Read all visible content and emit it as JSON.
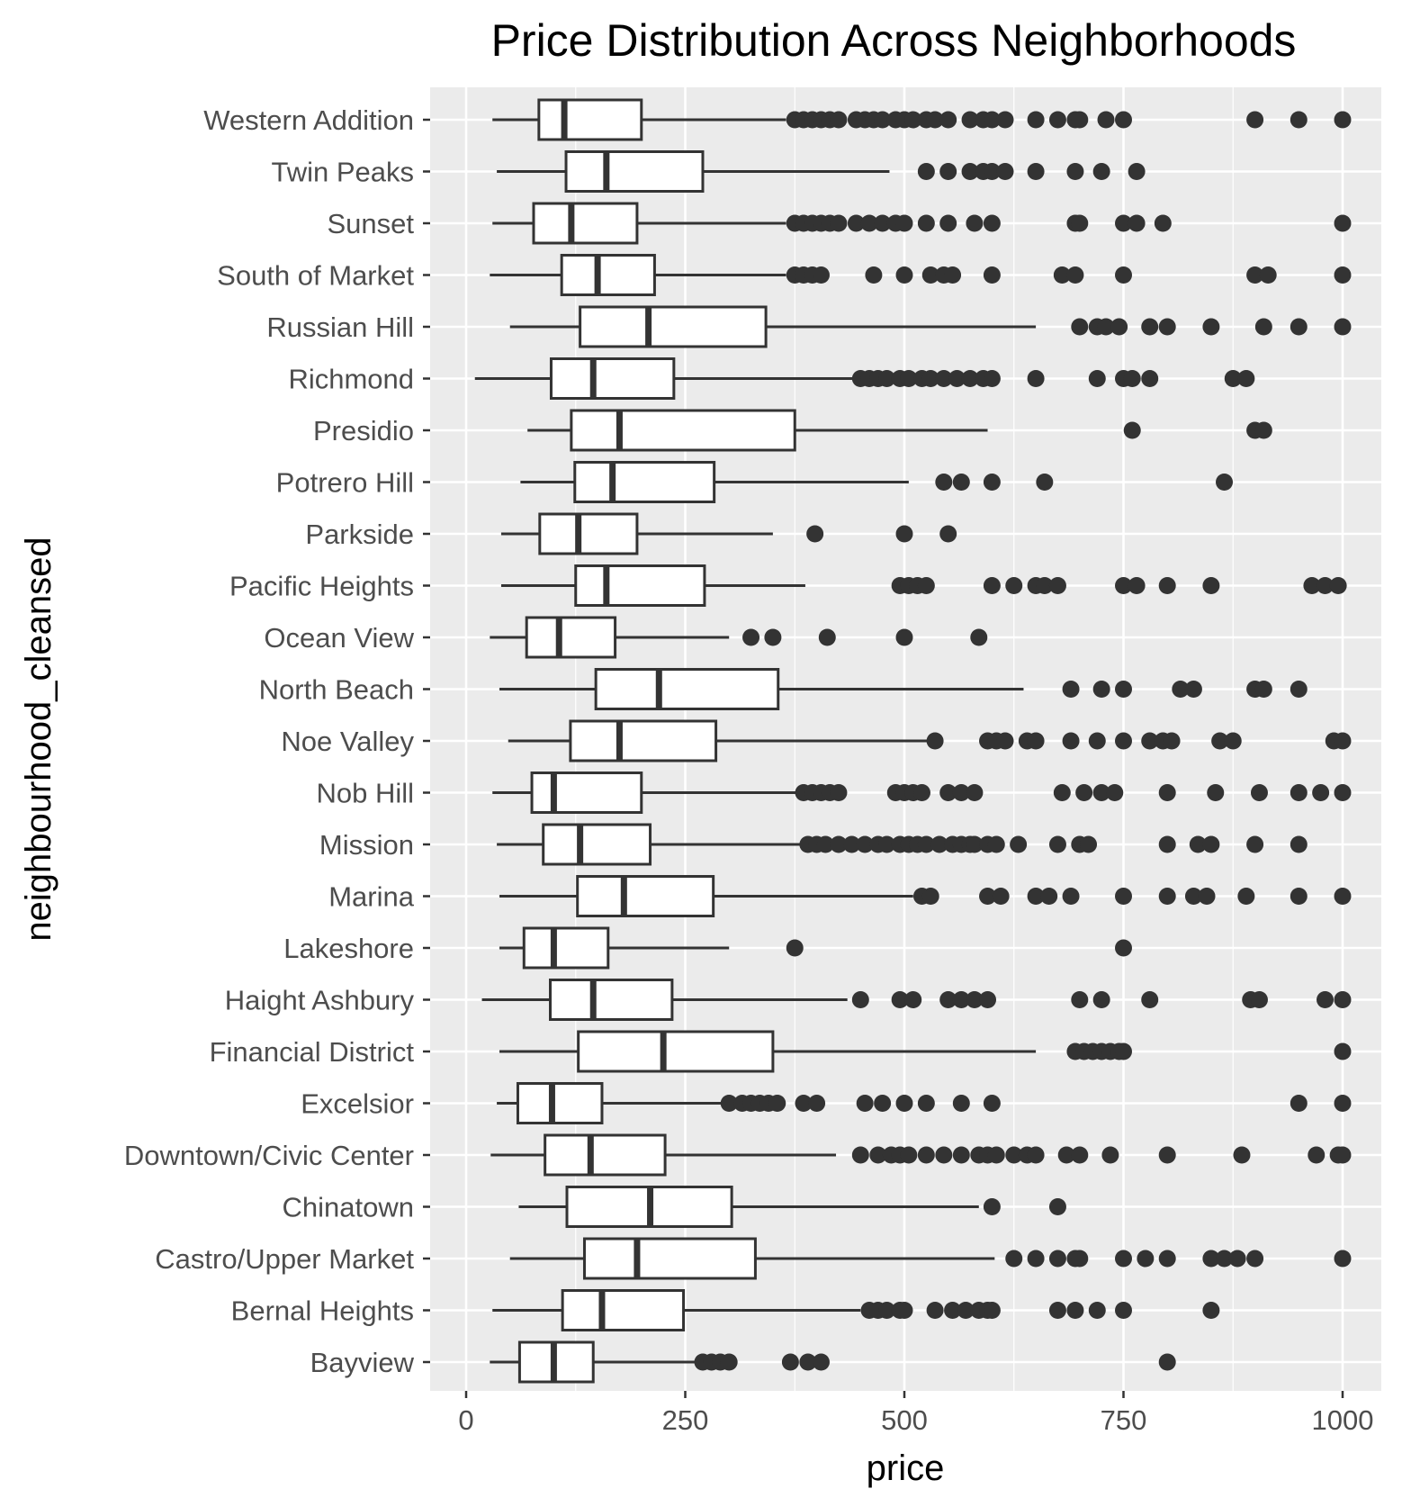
{
  "chart_data": {
    "type": "boxplot",
    "orientation": "horizontal",
    "title": "Price Distribution Across Neighborhoods",
    "xlabel": "price",
    "ylabel": "neighbourhood_cleansed",
    "xlim": [
      -40,
      1050
    ],
    "x_ticks": [
      0,
      250,
      500,
      750,
      1000
    ],
    "x_tick_labels": [
      "0",
      "250",
      "500",
      "750",
      "1000"
    ],
    "grid": true,
    "panel_background": "#ebebeb",
    "box_fill": "#ffffff",
    "line_color": "#333333",
    "categories": [
      "Western Addition",
      "Twin Peaks",
      "Sunset",
      "South of Market",
      "Russian Hill",
      "Richmond",
      "Presidio",
      "Potrero Hill",
      "Parkside",
      "Pacific Heights",
      "Ocean View",
      "North Beach",
      "Noe Valley",
      "Nob Hill",
      "Mission",
      "Marina",
      "Lakeshore",
      "Haight Ashbury",
      "Financial District",
      "Excelsior",
      "Downtown/Civic Center",
      "Chinatown",
      "Castro/Upper Market",
      "Bernal Heights",
      "Bayview"
    ],
    "boxes": [
      {
        "min": 30,
        "q1": 83,
        "median": 112,
        "q3": 200,
        "max": 365,
        "outliers": [
          375,
          385,
          395,
          405,
          415,
          425,
          445,
          455,
          465,
          475,
          490,
          500,
          510,
          525,
          535,
          550,
          575,
          590,
          600,
          615,
          650,
          675,
          695,
          700,
          730,
          750,
          900,
          950,
          1000
        ]
      },
      {
        "min": 35,
        "q1": 114,
        "median": 160,
        "q3": 270,
        "max": 483,
        "outliers": [
          525,
          550,
          575,
          590,
          600,
          615,
          650,
          695,
          725,
          765
        ]
      },
      {
        "min": 30,
        "q1": 77,
        "median": 120,
        "q3": 195,
        "max": 365,
        "outliers": [
          375,
          385,
          395,
          405,
          415,
          425,
          445,
          460,
          475,
          490,
          500,
          525,
          550,
          580,
          600,
          695,
          700,
          750,
          765,
          795,
          1000
        ]
      },
      {
        "min": 27,
        "q1": 109,
        "median": 150,
        "q3": 215,
        "max": 365,
        "outliers": [
          375,
          385,
          395,
          405,
          465,
          500,
          530,
          545,
          555,
          600,
          680,
          695,
          750,
          900,
          915,
          1000
        ]
      },
      {
        "min": 50,
        "q1": 130,
        "median": 208,
        "q3": 342,
        "max": 650,
        "outliers": [
          700,
          720,
          730,
          745,
          780,
          800,
          850,
          910,
          950,
          1000
        ]
      },
      {
        "min": 10,
        "q1": 97,
        "median": 145,
        "q3": 237,
        "max": 445,
        "outliers": [
          450,
          460,
          470,
          480,
          495,
          505,
          520,
          530,
          545,
          560,
          575,
          590,
          600,
          650,
          720,
          750,
          760,
          780,
          875,
          890
        ]
      },
      {
        "min": 70,
        "q1": 120,
        "median": 175,
        "q3": 375,
        "max": 595,
        "outliers": [
          760,
          900,
          910
        ]
      },
      {
        "min": 62,
        "q1": 124,
        "median": 167,
        "q3": 283,
        "max": 505,
        "outliers": [
          545,
          565,
          600,
          660,
          865
        ]
      },
      {
        "min": 40,
        "q1": 84,
        "median": 128,
        "q3": 195,
        "max": 350,
        "outliers": [
          398,
          500,
          550
        ]
      },
      {
        "min": 40,
        "q1": 125,
        "median": 160,
        "q3": 272,
        "max": 387,
        "outliers": [
          495,
          505,
          515,
          525,
          600,
          625,
          650,
          660,
          675,
          750,
          765,
          800,
          850,
          965,
          980,
          995
        ]
      },
      {
        "min": 27,
        "q1": 69,
        "median": 106,
        "q3": 170,
        "max": 300,
        "outliers": [
          325,
          350,
          412,
          500,
          585
        ]
      },
      {
        "min": 38,
        "q1": 148,
        "median": 220,
        "q3": 356,
        "max": 636,
        "outliers": [
          690,
          725,
          750,
          815,
          830,
          900,
          910,
          950
        ]
      },
      {
        "min": 48,
        "q1": 119,
        "median": 175,
        "q3": 285,
        "max": 530,
        "outliers": [
          535,
          595,
          605,
          615,
          640,
          650,
          690,
          720,
          750,
          780,
          795,
          805,
          860,
          875,
          990,
          1000
        ]
      },
      {
        "min": 30,
        "q1": 75,
        "median": 100,
        "q3": 200,
        "max": 380,
        "outliers": [
          385,
          395,
          405,
          415,
          425,
          490,
          500,
          510,
          520,
          550,
          565,
          580,
          680,
          705,
          725,
          740,
          800,
          855,
          905,
          950,
          975,
          1000
        ]
      },
      {
        "min": 35,
        "q1": 88,
        "median": 130,
        "q3": 210,
        "max": 385,
        "outliers": [
          390,
          400,
          410,
          425,
          440,
          455,
          470,
          480,
          495,
          505,
          515,
          525,
          540,
          555,
          565,
          575,
          580,
          595,
          605,
          630,
          675,
          700,
          710,
          800,
          835,
          850,
          900,
          950
        ]
      },
      {
        "min": 38,
        "q1": 127,
        "median": 180,
        "q3": 282,
        "max": 510,
        "outliers": [
          520,
          530,
          595,
          610,
          650,
          665,
          690,
          750,
          800,
          830,
          845,
          890,
          950,
          1000
        ]
      },
      {
        "min": 38,
        "q1": 66,
        "median": 100,
        "q3": 162,
        "max": 300,
        "outliers": [
          375,
          750
        ]
      },
      {
        "min": 18,
        "q1": 96,
        "median": 145,
        "q3": 235,
        "max": 435,
        "outliers": [
          450,
          495,
          510,
          550,
          565,
          580,
          595,
          700,
          725,
          780,
          895,
          905,
          980,
          1000
        ]
      },
      {
        "min": 38,
        "q1": 128,
        "median": 225,
        "q3": 350,
        "max": 650,
        "outliers": [
          695,
          705,
          715,
          725,
          735,
          745,
          750,
          1000
        ]
      },
      {
        "min": 35,
        "q1": 59,
        "median": 98,
        "q3": 155,
        "max": 300,
        "outliers": [
          300,
          315,
          325,
          335,
          345,
          355,
          385,
          400,
          455,
          475,
          500,
          525,
          565,
          600,
          950,
          1000
        ]
      },
      {
        "min": 28,
        "q1": 90,
        "median": 142,
        "q3": 227,
        "max": 422,
        "outliers": [
          450,
          470,
          485,
          495,
          505,
          525,
          545,
          565,
          585,
          595,
          605,
          625,
          640,
          650,
          685,
          700,
          735,
          800,
          885,
          970,
          995,
          1000
        ]
      },
      {
        "min": 60,
        "q1": 115,
        "median": 210,
        "q3": 303,
        "max": 585,
        "outliers": [
          600,
          675
        ]
      },
      {
        "min": 50,
        "q1": 135,
        "median": 195,
        "q3": 330,
        "max": 603,
        "outliers": [
          625,
          650,
          675,
          695,
          700,
          750,
          775,
          800,
          850,
          865,
          880,
          900,
          1000
        ]
      },
      {
        "min": 30,
        "q1": 110,
        "median": 155,
        "q3": 248,
        "max": 450,
        "outliers": [
          460,
          470,
          480,
          495,
          500,
          535,
          555,
          570,
          585,
          595,
          600,
          675,
          695,
          720,
          750,
          850
        ]
      },
      {
        "min": 27,
        "q1": 61,
        "median": 100,
        "q3": 145,
        "max": 270,
        "outliers": [
          270,
          280,
          290,
          300,
          370,
          390,
          405,
          800
        ]
      }
    ]
  }
}
